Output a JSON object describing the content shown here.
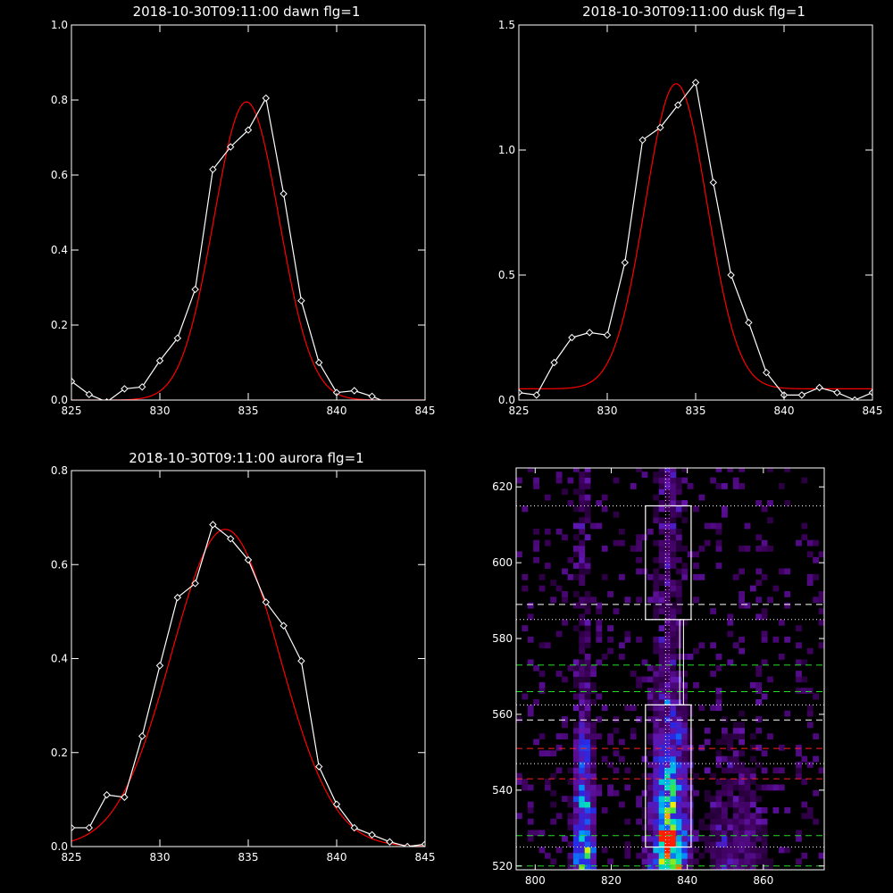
{
  "colors": {
    "background": "#000000",
    "axis": "#ffffff",
    "data": "#ffffff",
    "fit": "#ff0000"
  },
  "chart_data": [
    {
      "type": "line",
      "title": "2018-10-30T09:11:00 dawn flg=1",
      "xlim": [
        825,
        845
      ],
      "ylim": [
        0,
        1.0
      ],
      "xticks": [
        825,
        830,
        835,
        840,
        845
      ],
      "yticks": [
        0.0,
        0.2,
        0.4,
        0.6,
        0.8,
        1.0
      ],
      "ytick_labels": [
        "0.0",
        "0.2",
        "0.4",
        "0.6",
        "0.8",
        "1.0"
      ],
      "series": [
        {
          "kind": "data",
          "x": [
            825,
            826,
            827,
            828,
            829,
            830,
            831,
            832,
            833,
            834,
            835,
            836,
            837,
            838,
            839,
            840,
            841,
            842,
            843,
            844,
            845
          ],
          "y": [
            0.05,
            0.015,
            -0.005,
            0.03,
            0.035,
            0.105,
            0.165,
            0.295,
            0.615,
            0.675,
            0.72,
            0.805,
            0.55,
            0.265,
            0.1,
            0.02,
            0.025,
            0.01,
            -0.01,
            -0.01,
            -0.01
          ]
        },
        {
          "kind": "fit",
          "model": "gaussian",
          "amplitude": 0.795,
          "center": 834.9,
          "sigma": 1.85,
          "offset": 0.0
        }
      ]
    },
    {
      "type": "line",
      "title": "2018-10-30T09:11:00 dusk flg=1",
      "xlim": [
        825,
        845
      ],
      "ylim": [
        0,
        1.5
      ],
      "xticks": [
        825,
        830,
        835,
        840,
        845
      ],
      "yticks": [
        0.0,
        0.5,
        1.0,
        1.5
      ],
      "ytick_labels": [
        "0.0",
        "0.5",
        "1.0",
        "1.5"
      ],
      "series": [
        {
          "kind": "data",
          "x": [
            825,
            826,
            827,
            828,
            829,
            830,
            831,
            832,
            833,
            834,
            835,
            836,
            837,
            838,
            839,
            840,
            841,
            842,
            843,
            844,
            845
          ],
          "y": [
            0.03,
            0.02,
            0.15,
            0.25,
            0.27,
            0.26,
            0.55,
            1.04,
            1.09,
            1.18,
            1.27,
            0.87,
            0.5,
            0.31,
            0.11,
            0.02,
            0.02,
            0.05,
            0.03,
            0.0,
            0.03
          ]
        },
        {
          "kind": "fit",
          "model": "gaussian",
          "amplitude": 1.22,
          "center": 833.9,
          "sigma": 1.75,
          "offset": 0.045
        }
      ]
    },
    {
      "type": "line",
      "title": "2018-10-30T09:11:00 aurora flg=1",
      "xlim": [
        825,
        845
      ],
      "ylim": [
        0,
        0.8
      ],
      "xticks": [
        825,
        830,
        835,
        840,
        845
      ],
      "yticks": [
        0.0,
        0.2,
        0.4,
        0.6,
        0.8
      ],
      "ytick_labels": [
        "0.0",
        "0.2",
        "0.4",
        "0.6",
        "0.8"
      ],
      "series": [
        {
          "kind": "data",
          "x": [
            825,
            826,
            827,
            828,
            829,
            830,
            831,
            832,
            833,
            834,
            835,
            836,
            837,
            838,
            839,
            840,
            841,
            842,
            843,
            844,
            845
          ],
          "y": [
            0.04,
            0.04,
            0.11,
            0.105,
            0.235,
            0.385,
            0.53,
            0.56,
            0.685,
            0.655,
            0.61,
            0.52,
            0.47,
            0.395,
            0.17,
            0.09,
            0.04,
            0.025,
            0.01,
            0.0,
            0.005
          ]
        },
        {
          "kind": "fit",
          "model": "gaussian",
          "amplitude": 0.675,
          "center": 833.7,
          "sigma": 3.05,
          "offset": 0.0
        }
      ]
    },
    {
      "type": "heatmap",
      "title": "",
      "xlim": [
        795,
        876
      ],
      "ylim": [
        519,
        625
      ],
      "xticks": [
        800,
        820,
        840,
        860
      ],
      "yticks": [
        520,
        540,
        560,
        580,
        600,
        620
      ],
      "columns": [
        {
          "center": 812,
          "width": 1.8,
          "strength": 0.75
        },
        {
          "center": 834.5,
          "width": 3.0,
          "strength": 1.0
        },
        {
          "center": 852,
          "width": 6.0,
          "strength": 0.18
        }
      ],
      "hotspot": {
        "x": 834,
        "y": 526.5
      },
      "white_boxes": [
        {
          "x0": 829,
          "x1": 841,
          "y0": 585,
          "y1": 615
        },
        {
          "x0": 829,
          "x1": 841,
          "y0": 525,
          "y1": 562.5
        }
      ],
      "connector": {
        "x0": 838,
        "x1": 839,
        "y0": 562.5,
        "y1": 585
      },
      "vertical_lines": [
        {
          "x": 834.3,
          "color": "#ffffff",
          "style": "dotted"
        },
        {
          "x": 835.2,
          "color": "#ff66ff",
          "style": "dotted"
        }
      ],
      "horizontal_lines": [
        {
          "y": 615,
          "color": "#ffffff",
          "style": "dotted"
        },
        {
          "y": 589,
          "color": "#ffffff",
          "style": "dashed"
        },
        {
          "y": 585,
          "color": "#ffffff",
          "style": "dotted"
        },
        {
          "y": 573,
          "color": "#22dd22",
          "style": "dashed"
        },
        {
          "y": 566,
          "color": "#22dd22",
          "style": "dashed"
        },
        {
          "y": 562.5,
          "color": "#ffffff",
          "style": "dotted"
        },
        {
          "y": 558.5,
          "color": "#ffffff",
          "style": "dashed"
        },
        {
          "y": 551,
          "color": "#ff2222",
          "style": "dashed"
        },
        {
          "y": 547,
          "color": "#ffffff",
          "style": "dotted"
        },
        {
          "y": 543,
          "color": "#ff2222",
          "style": "dashed"
        },
        {
          "y": 528,
          "color": "#22dd22",
          "style": "dashed"
        },
        {
          "y": 525,
          "color": "#ffffff",
          "style": "dotted"
        },
        {
          "y": 520,
          "color": "#22dd22",
          "style": "dashed"
        }
      ]
    }
  ]
}
